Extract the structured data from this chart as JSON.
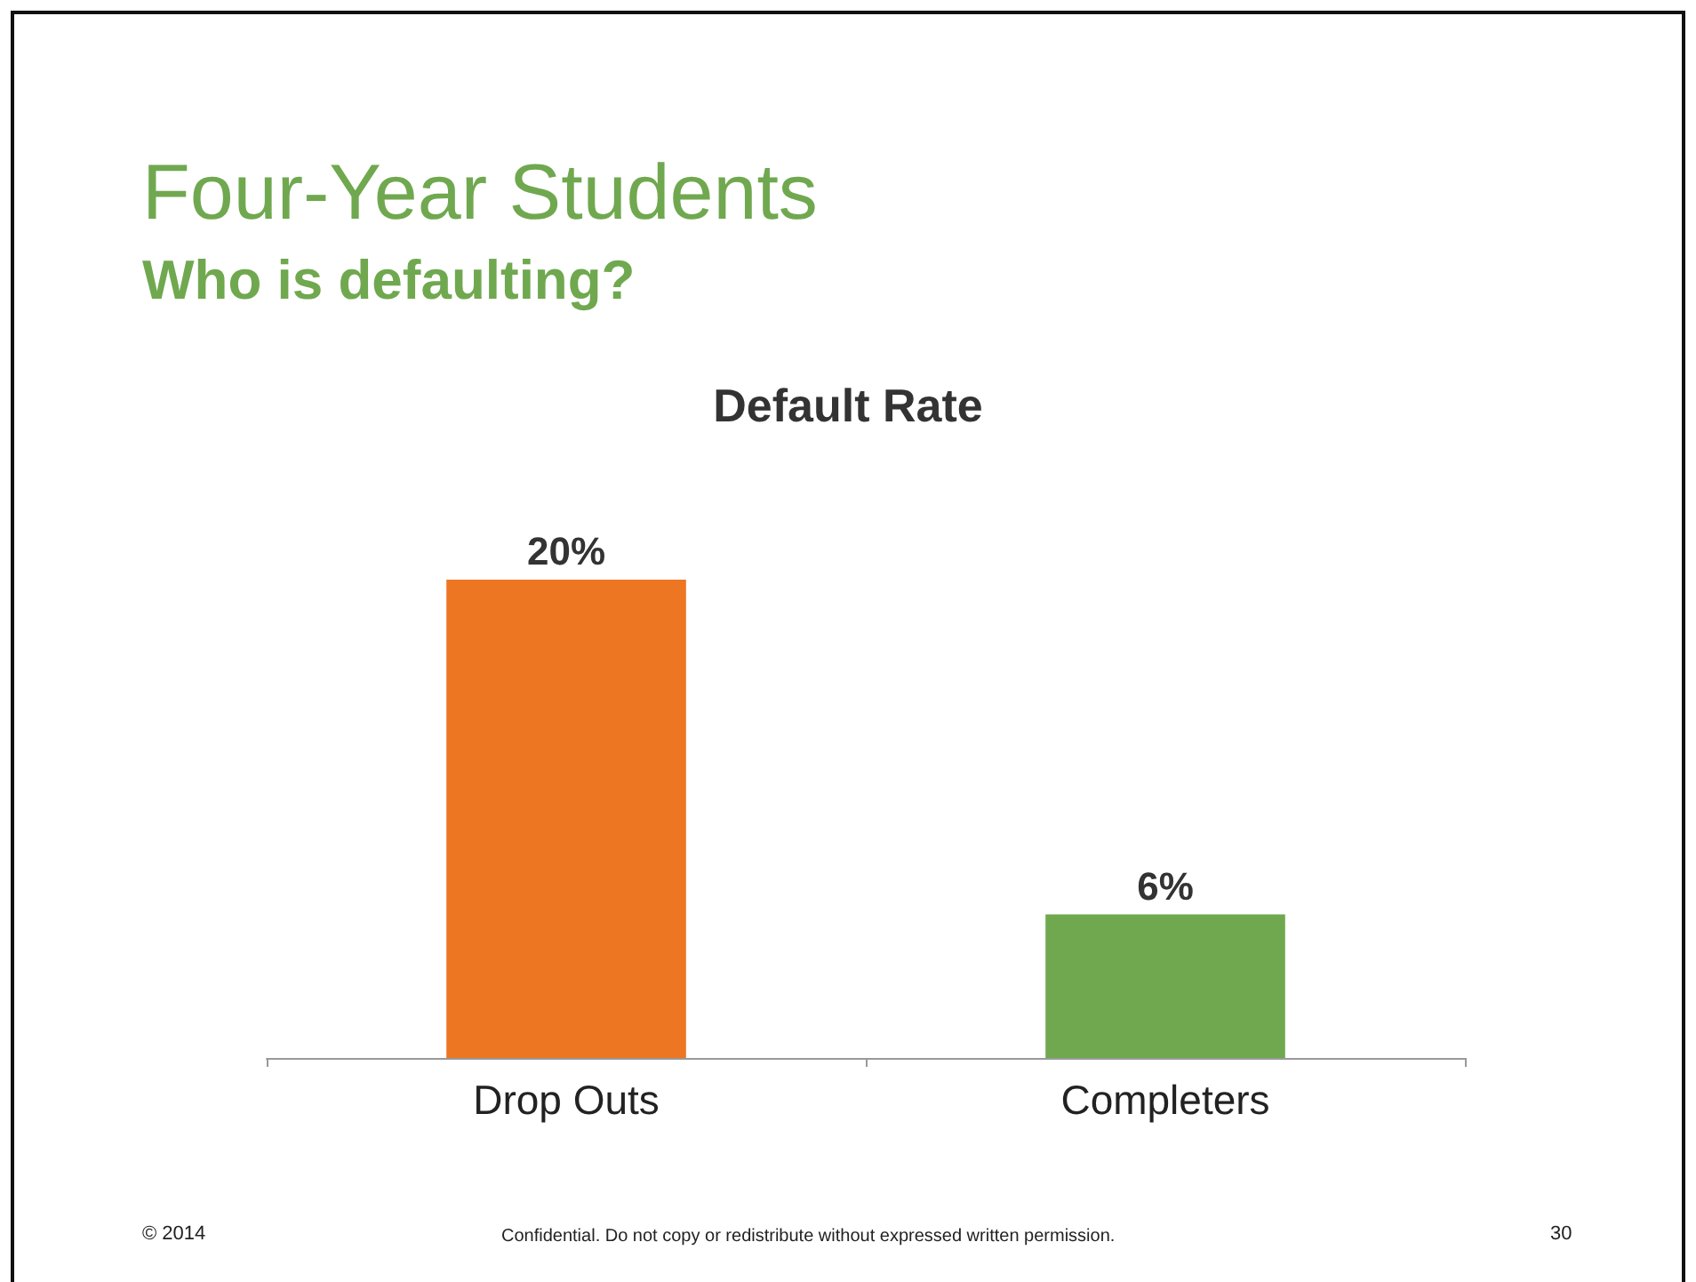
{
  "chart_data": {
    "type": "bar",
    "title": "Default Rate",
    "categories": [
      "Drop Outs",
      "Completers"
    ],
    "values": [
      20,
      6
    ],
    "colors": [
      "#ed7623",
      "#70a84f"
    ],
    "value_labels": [
      "20%",
      "6%"
    ],
    "annotations": [
      "Four-Year Students",
      "Who is defaulting?",
      "© 2014",
      "Confidential. Do not copy or redistribute without expressed written permission.",
      "30"
    ]
  }
}
